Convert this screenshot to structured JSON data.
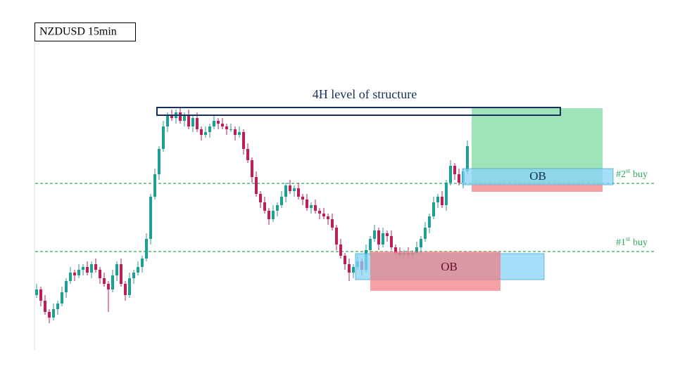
{
  "chart_data": {
    "type": "candlestick",
    "title": "NZDUSD 15min",
    "annotations": {
      "structure": "4H level of structure",
      "ob_upper": "OB",
      "ob_lower": "OB"
    },
    "levels": [
      {
        "value": 59.75,
        "prefix": "#2",
        "sup": "st",
        "suffix": "buy"
      },
      {
        "value": 35.5,
        "prefix": "#1",
        "sup": "st",
        "suffix": "buy"
      }
    ],
    "ylim": [
      0,
      100
    ],
    "up_color": "#1f9e94",
    "down_color": "#be1e57",
    "level_color": "#2eaa5a",
    "open": [
      20,
      22,
      18,
      14,
      12,
      15,
      17,
      21,
      25,
      28,
      27,
      29,
      30,
      28,
      31,
      29,
      26,
      24,
      22,
      27,
      31,
      24,
      20,
      26,
      28,
      30,
      33,
      40,
      55,
      63,
      72,
      80,
      84,
      83,
      85,
      82,
      84,
      80,
      83,
      79,
      77,
      78,
      80,
      82,
      81,
      80,
      79,
      79,
      77,
      78,
      72,
      68,
      62,
      56,
      53,
      50,
      47,
      50,
      52,
      55,
      59,
      57,
      58,
      55,
      54,
      51,
      52,
      50,
      49,
      48,
      47,
      44,
      38,
      34,
      31,
      28,
      30,
      32,
      29,
      36,
      40,
      43,
      38,
      42,
      41,
      37,
      35,
      34,
      35,
      34,
      35,
      37,
      40,
      44,
      48,
      53,
      55,
      52,
      60,
      66,
      63,
      60,
      64
    ],
    "high": [
      24,
      23,
      20,
      15,
      17,
      18,
      23,
      26,
      30,
      29,
      31,
      31,
      32,
      32,
      33,
      30,
      28,
      25,
      29,
      32,
      33,
      25,
      28,
      29,
      32,
      34,
      42,
      56,
      65,
      73,
      82,
      85,
      86,
      86,
      87,
      85,
      86,
      84,
      85,
      80,
      80,
      81,
      84,
      83,
      83,
      81,
      81,
      80,
      80,
      79,
      74,
      69,
      64,
      57,
      55,
      51,
      52,
      53,
      57,
      60,
      61,
      59,
      60,
      56,
      56,
      53,
      54,
      51,
      51,
      49,
      49,
      45,
      40,
      35,
      33,
      31,
      34,
      33,
      38,
      41,
      45,
      44,
      44,
      43,
      43,
      38,
      37,
      36,
      37,
      36,
      39,
      41,
      46,
      49,
      55,
      56,
      57,
      61,
      68,
      67,
      65,
      65,
      75
    ],
    "low": [
      19,
      16,
      13,
      10,
      11,
      13,
      16,
      19,
      24,
      25,
      26,
      27,
      27,
      26,
      28,
      24,
      23,
      14,
      21,
      25,
      23,
      18,
      19,
      24,
      27,
      28,
      32,
      38,
      54,
      61,
      71,
      78,
      82,
      81,
      81,
      80,
      79,
      78,
      78,
      75,
      76,
      76,
      79,
      79,
      79,
      77,
      78,
      75,
      76,
      70,
      67,
      60,
      55,
      51,
      49,
      45,
      46,
      48,
      51,
      53,
      56,
      55,
      54,
      52,
      50,
      49,
      49,
      47,
      47,
      45,
      43,
      36,
      33,
      29,
      25,
      26,
      29,
      27,
      28,
      34,
      39,
      36,
      37,
      39,
      36,
      33,
      33,
      32,
      33,
      32,
      34,
      35,
      39,
      42,
      47,
      51,
      51,
      50,
      59,
      61,
      59,
      58,
      63
    ],
    "close": [
      22,
      18,
      14,
      12,
      15,
      17,
      21,
      25,
      28,
      27,
      29,
      30,
      28,
      31,
      29,
      26,
      24,
      22,
      27,
      31,
      24,
      20,
      26,
      28,
      30,
      33,
      40,
      55,
      63,
      72,
      80,
      84,
      83,
      85,
      82,
      84,
      80,
      83,
      79,
      77,
      78,
      80,
      82,
      81,
      80,
      79,
      79,
      77,
      78,
      72,
      68,
      62,
      56,
      53,
      50,
      47,
      50,
      52,
      55,
      59,
      57,
      58,
      55,
      54,
      51,
      52,
      50,
      49,
      48,
      47,
      44,
      38,
      34,
      31,
      28,
      30,
      32,
      29,
      36,
      40,
      43,
      38,
      42,
      41,
      37,
      35,
      34,
      35,
      34,
      35,
      37,
      40,
      44,
      48,
      53,
      55,
      52,
      60,
      66,
      63,
      60,
      64,
      73
    ]
  }
}
